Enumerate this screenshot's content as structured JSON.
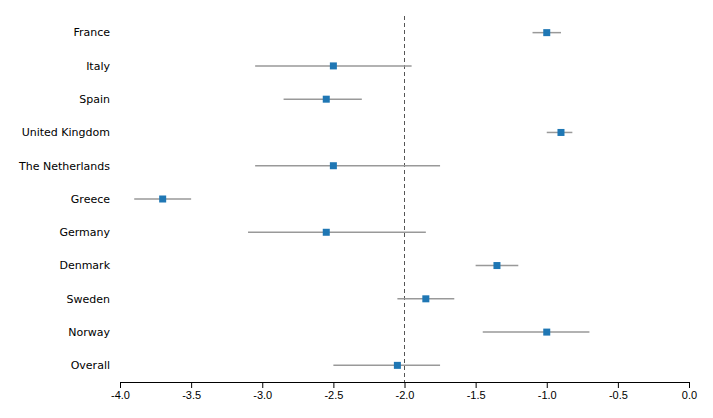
{
  "chart_data": {
    "type": "forest",
    "categories": [
      "France",
      "Italy",
      "Spain",
      "United Kingdom",
      "The Netherlands",
      "Greece",
      "Germany",
      "Denmark",
      "Sweden",
      "Norway",
      "Overall"
    ],
    "values": [
      -1.0,
      -2.5,
      -2.55,
      -0.9,
      -2.5,
      -3.7,
      -2.55,
      -1.35,
      -1.85,
      -1.0,
      -2.05
    ],
    "ci_low": [
      -1.1,
      -3.05,
      -2.85,
      -1.0,
      -3.05,
      -3.9,
      -3.1,
      -1.5,
      -2.05,
      -1.45,
      -2.5
    ],
    "ci_high": [
      -0.9,
      -1.95,
      -2.3,
      -0.82,
      -1.75,
      -3.5,
      -1.85,
      -1.2,
      -1.65,
      -0.7,
      -1.75
    ],
    "reference_x": -2.0,
    "xlim": [
      -4.0,
      0.0
    ],
    "xticks": [
      {
        "value": -4.0,
        "label": "-4.0"
      },
      -3.5,
      {
        "value": -3.0,
        "label": "-3.0"
      },
      -2.5,
      {
        "value": -2.0,
        "label": "-2.0"
      },
      -1.5,
      {
        "value": -1.0,
        "label": "-1.0"
      },
      -0.5,
      {
        "value": 0.0,
        "label": "0.0"
      }
    ]
  }
}
